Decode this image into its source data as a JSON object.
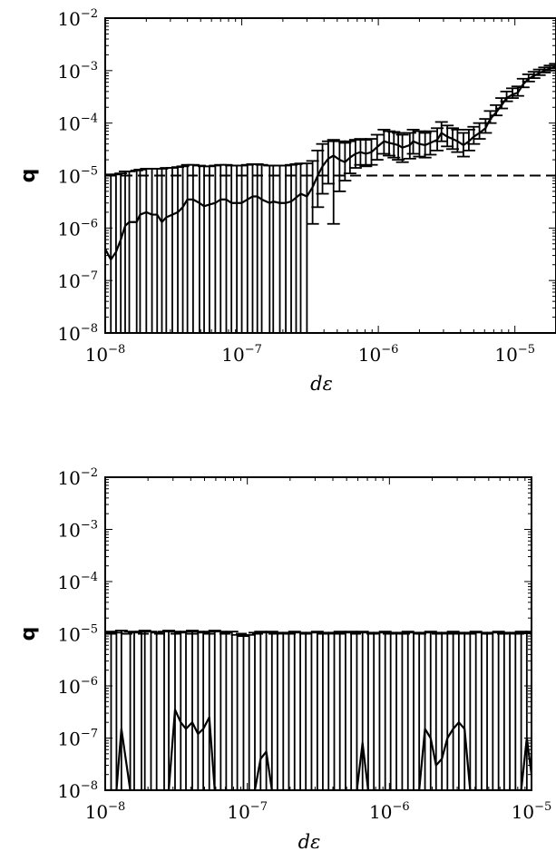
{
  "chart_data": [
    {
      "type": "line",
      "title": "",
      "xlabel": "dε",
      "ylabel": "q",
      "xscale": "log",
      "yscale": "log",
      "xlim": [
        1e-08,
        2e-05
      ],
      "ylim": [
        1e-08,
        0.01
      ],
      "xtick_labels": [
        "10^-8",
        "10^-7",
        "10^-6",
        "10^-5"
      ],
      "ytick_labels": [
        "10^-8",
        "10^-7",
        "10^-6",
        "10^-5",
        "10^-4",
        "10^-3",
        "10^-2"
      ],
      "grid": false,
      "reference_line": {
        "style": "dashed",
        "y": 1e-05
      },
      "series": [
        {
          "x": [
            1e-08,
            1.1e-08,
            1.2e-08,
            1.3e-08,
            1.4e-08,
            1.5e-08,
            1.7e-08,
            1.8e-08,
            2e-08,
            2.2e-08,
            2.4e-08,
            2.6e-08,
            2.8e-08,
            3.1e-08,
            3.4e-08,
            3.7e-08,
            4e-08,
            4.4e-08,
            4.9e-08,
            5.3e-08,
            5.8e-08,
            6.4e-08,
            7e-08,
            7.7e-08,
            8.4e-08,
            9.2e-08,
            1e-07,
            1.1e-07,
            1.2e-07,
            1.3e-07,
            1.4e-07,
            1.6e-07,
            1.7e-07,
            1.9e-07,
            2.1e-07,
            2.3e-07,
            2.5e-07,
            2.7e-07,
            3e-07,
            3.3e-07,
            3.6e-07,
            3.9e-07,
            4.3e-07,
            4.7e-07,
            5.2e-07,
            5.7e-07,
            6.2e-07,
            6.8e-07,
            7.4e-07,
            8.1e-07,
            8.9e-07,
            9.8e-07,
            1.1e-06,
            1.2e-06,
            1.3e-06,
            1.4e-06,
            1.5e-06,
            1.7e-06,
            1.8e-06,
            2e-06,
            2.2e-06,
            2.4e-06,
            2.7e-06,
            2.9e-06,
            3.2e-06,
            3.5e-06,
            3.8e-06,
            4.2e-06,
            4.6e-06,
            5e-06,
            5.5e-06,
            6.1e-06,
            6.6e-06,
            7.3e-06,
            8e-06,
            8.7e-06,
            9.6e-06,
            1.05e-05,
            1.15e-05,
            1.26e-05,
            1.38e-05,
            1.51e-05,
            1.65e-05,
            1.81e-05,
            1.98e-05
          ],
          "y": [
            4e-07,
            2.5e-07,
            3.5e-07,
            6e-07,
            1.1e-06,
            1.3e-06,
            1.3e-06,
            1.8e-06,
            2e-06,
            1.8e-06,
            1.8e-06,
            1.3e-06,
            1.6e-06,
            1.8e-06,
            2e-06,
            2.5e-06,
            3.5e-06,
            3.5e-06,
            3e-06,
            2.6e-06,
            2.8e-06,
            3e-06,
            3.5e-06,
            3.5e-06,
            3e-06,
            3e-06,
            3e-06,
            3.5e-06,
            4e-06,
            4e-06,
            3.5e-06,
            3e-06,
            3.2e-06,
            3e-06,
            3e-06,
            3.2e-06,
            3.8e-06,
            4.5e-06,
            4e-06,
            6e-06,
            1e-05,
            1.5e-05,
            2.1e-05,
            2.4e-05,
            2e-05,
            1.8e-05,
            2.2e-05,
            2.6e-05,
            2.8e-05,
            2.6e-05,
            2.8e-05,
            3.5e-05,
            4.5e-05,
            4.2e-05,
            4e-05,
            3.8e-05,
            3.4e-05,
            3.8e-05,
            4.5e-05,
            4e-05,
            3.8e-05,
            4.2e-05,
            4.8e-05,
            6.5e-05,
            5.5e-05,
            5e-05,
            4.5e-05,
            3.8e-05,
            4.5e-05,
            5.5e-05,
            6.5e-05,
            8e-05,
            0.00012,
            0.00016,
            0.00022,
            0.0003,
            0.00035,
            0.00038,
            0.00055,
            0.0007,
            0.0008,
            0.0009,
            0.001,
            0.0011,
            0.0012
          ],
          "err_low": [
            1e-08,
            1e-08,
            1e-08,
            1e-08,
            1e-08,
            1e-08,
            1e-08,
            1e-08,
            1e-08,
            1e-08,
            1e-08,
            1e-08,
            1e-08,
            1e-08,
            1e-08,
            1e-08,
            1e-08,
            1e-08,
            1e-08,
            1e-08,
            1e-08,
            1e-08,
            1e-08,
            1e-08,
            1e-08,
            1e-08,
            1e-08,
            1e-08,
            1e-08,
            1e-08,
            1e-08,
            1e-08,
            1e-08,
            1e-08,
            1e-08,
            1e-08,
            1e-08,
            1e-08,
            1e-08,
            1.2e-06,
            2.5e-06,
            4.5e-06,
            7e-06,
            1.2e-06,
            5e-06,
            8e-06,
            1.1e-05,
            1.4e-05,
            1.6e-05,
            1.5e-05,
            1.6e-05,
            2e-05,
            2.6e-05,
            2.4e-05,
            2.2e-05,
            2e-05,
            1.8e-05,
            2.1e-05,
            2.6e-05,
            2.3e-05,
            2.2e-05,
            2.5e-05,
            3e-05,
            4.5e-05,
            3.6e-05,
            3.2e-05,
            2.8e-05,
            2.3e-05,
            3e-05,
            4e-05,
            5e-05,
            6.5e-05,
            0.0001,
            0.00014,
            0.00019,
            0.00026,
            0.0003,
            0.00033,
            0.00048,
            0.00062,
            0.00072,
            0.00082,
            0.00092,
            0.001,
            0.0011
          ],
          "err_high": [
            1e-05,
            1.05e-05,
            1.05e-05,
            1.1e-05,
            1.2e-05,
            1.2e-05,
            1.25e-05,
            1.3e-05,
            1.35e-05,
            1.35e-05,
            1.35e-05,
            1.35e-05,
            1.4e-05,
            1.4e-05,
            1.45e-05,
            1.5e-05,
            1.6e-05,
            1.6e-05,
            1.55e-05,
            1.5e-05,
            1.5e-05,
            1.55e-05,
            1.6e-05,
            1.6e-05,
            1.55e-05,
            1.55e-05,
            1.55e-05,
            1.6e-05,
            1.65e-05,
            1.65e-05,
            1.6e-05,
            1.55e-05,
            1.55e-05,
            1.55e-05,
            1.55e-05,
            1.6e-05,
            1.65e-05,
            1.7e-05,
            1.7e-05,
            1.9e-05,
            3e-05,
            4e-05,
            4.5e-05,
            4.8e-05,
            4.5e-05,
            4.2e-05,
            4.5e-05,
            4.8e-05,
            5e-05,
            4.8e-05,
            5e-05,
            6e-05,
            7.5e-05,
            7e-05,
            6.8e-05,
            6.5e-05,
            6e-05,
            6.5e-05,
            7.5e-05,
            7e-05,
            6.5e-05,
            7e-05,
            8e-05,
            0.000105,
            9e-05,
            8e-05,
            7.5e-05,
            6.5e-05,
            7.5e-05,
            8.5e-05,
            0.0001,
            0.00012,
            0.00017,
            0.00022,
            0.0003,
            0.0004,
            0.00046,
            0.0005,
            0.0007,
            0.00085,
            0.00095,
            0.00105,
            0.00115,
            0.00125,
            0.00135
          ]
        }
      ]
    },
    {
      "type": "line",
      "title": "",
      "xlabel": "dε",
      "ylabel": "q",
      "xscale": "log",
      "yscale": "log",
      "xlim": [
        1e-08,
        1e-05
      ],
      "ylim": [
        1e-08,
        0.01
      ],
      "xtick_labels": [
        "10^-8",
        "10^-7",
        "10^-6",
        "10^-5"
      ],
      "ytick_labels": [
        "10^-8",
        "10^-7",
        "10^-6",
        "10^-5",
        "10^-4",
        "10^-3",
        "10^-2"
      ],
      "grid": false,
      "reference_line": {
        "style": "dashed",
        "y": 1e-05
      },
      "series": [
        {
          "x": [
            1e-08,
            1.1e-08,
            1.2e-08,
            1.3e-08,
            1.5e-08,
            1.6e-08,
            1.8e-08,
            1.9e-08,
            2.1e-08,
            2.3e-08,
            2.6e-08,
            2.8e-08,
            3.1e-08,
            3.4e-08,
            3.7e-08,
            4.1e-08,
            4.5e-08,
            4.9e-08,
            5.4e-08,
            5.9e-08,
            6.5e-08,
            7.1e-08,
            7.8e-08,
            8.5e-08,
            9.4e-08,
            1.03e-07,
            1.13e-07,
            1.24e-07,
            1.36e-07,
            1.49e-07,
            1.63e-07,
            1.79e-07,
            1.96e-07,
            2.15e-07,
            2.36e-07,
            2.58e-07,
            2.83e-07,
            3.11e-07,
            3.4e-07,
            3.73e-07,
            4.09e-07,
            4.48e-07,
            4.91e-07,
            5.38e-07,
            5.9e-07,
            6.47e-07,
            7.09e-07,
            7.77e-07,
            8.52e-07,
            9.34e-07,
            1.02e-06,
            1.12e-06,
            1.23e-06,
            1.35e-06,
            1.48e-06,
            1.62e-06,
            1.78e-06,
            1.95e-06,
            2.13e-06,
            2.34e-06,
            2.56e-06,
            2.81e-06,
            3.08e-06,
            3.38e-06,
            3.7e-06,
            4.06e-06,
            4.45e-06,
            4.87e-06,
            5.34e-06,
            5.86e-06,
            6.42e-06,
            7.04e-06,
            7.71e-06,
            8.46e-06,
            9.27e-06,
            1e-05
          ],
          "y": [
            1e-08,
            1e-08,
            1e-08,
            1.5e-07,
            1e-08,
            1e-08,
            1e-08,
            1e-08,
            1e-08,
            1e-08,
            1e-08,
            1e-08,
            3.5e-07,
            2e-07,
            1.5e-07,
            2e-07,
            1.2e-07,
            1.5e-07,
            2.5e-07,
            1e-08,
            1e-08,
            1e-08,
            1e-08,
            1e-08,
            1e-08,
            1e-08,
            1e-08,
            4e-08,
            5.5e-08,
            1e-08,
            1e-08,
            1e-08,
            1e-08,
            1e-08,
            1e-08,
            1e-08,
            1e-08,
            1e-08,
            1e-08,
            1e-08,
            1e-08,
            1e-08,
            1e-08,
            1e-08,
            1e-08,
            8e-08,
            1e-08,
            1e-08,
            1e-08,
            1e-08,
            1e-08,
            1e-08,
            1e-08,
            1e-08,
            1e-08,
            1e-08,
            1.5e-07,
            1e-07,
            3e-08,
            4e-08,
            1e-07,
            1.5e-07,
            2e-07,
            1.5e-07,
            1e-08,
            1e-08,
            1e-08,
            1e-08,
            1e-08,
            1e-08,
            1e-08,
            1e-08,
            1e-08,
            1e-08,
            1e-07,
            2e-08
          ],
          "err_low": [
            1e-08,
            1e-08,
            1e-08,
            1e-08,
            1e-08,
            1e-08,
            1e-08,
            1e-08,
            1e-08,
            1e-08,
            1e-08,
            1e-08,
            1e-08,
            1e-08,
            1e-08,
            1e-08,
            1e-08,
            1e-08,
            1e-08,
            1e-08,
            1e-08,
            1e-08,
            1e-08,
            1e-08,
            1e-08,
            1e-08,
            1e-08,
            1e-08,
            1e-08,
            1e-08,
            1e-08,
            1e-08,
            1e-08,
            1e-08,
            1e-08,
            1e-08,
            1e-08,
            1e-08,
            1e-08,
            1e-08,
            1e-08,
            1e-08,
            1e-08,
            1e-08,
            1e-08,
            1e-08,
            1e-08,
            1e-08,
            1e-08,
            1e-08,
            1e-08,
            1e-08,
            1e-08,
            1e-08,
            1e-08,
            1e-08,
            1e-08,
            1e-08,
            1e-08,
            1e-08,
            1e-08,
            1e-08,
            1e-08,
            1e-08,
            1e-08,
            1e-08,
            1e-08,
            1e-08,
            1e-08,
            1e-08,
            1e-08,
            1e-08,
            1e-08,
            1e-08,
            1e-08,
            1e-08
          ],
          "err_high": [
            1.05e-05,
            1.1e-05,
            1.05e-05,
            1.15e-05,
            1.1e-05,
            1.05e-05,
            1.1e-05,
            1.15e-05,
            1.1e-05,
            1.05e-05,
            1.1e-05,
            1.15e-05,
            1.1e-05,
            1.05e-05,
            1.1e-05,
            1.15e-05,
            1.1e-05,
            1.05e-05,
            1.1e-05,
            1.15e-05,
            1.1e-05,
            1.05e-05,
            1.1e-05,
            9.5e-06,
            9e-06,
            9.5e-06,
            1.05e-05,
            1.1e-05,
            1.05e-05,
            1.1e-05,
            1.05e-05,
            1e-05,
            1.05e-05,
            1.1e-05,
            1.05e-05,
            1e-05,
            1.05e-05,
            1.1e-05,
            1.05e-05,
            1e-05,
            1.05e-05,
            1.1e-05,
            1.05e-05,
            1.1e-05,
            1.05e-05,
            1.1e-05,
            1.05e-05,
            1e-05,
            1.05e-05,
            1.1e-05,
            1.05e-05,
            1e-05,
            1.05e-05,
            1.1e-05,
            1.05e-05,
            1e-05,
            1.05e-05,
            1.1e-05,
            1.05e-05,
            1e-05,
            1.05e-05,
            1.1e-05,
            1.05e-05,
            1e-05,
            1.05e-05,
            1.1e-05,
            1.05e-05,
            1e-05,
            1.05e-05,
            1.1e-05,
            1.05e-05,
            1e-05,
            1.05e-05,
            1.1e-05,
            1.05e-05,
            1.1e-05
          ]
        }
      ]
    }
  ]
}
